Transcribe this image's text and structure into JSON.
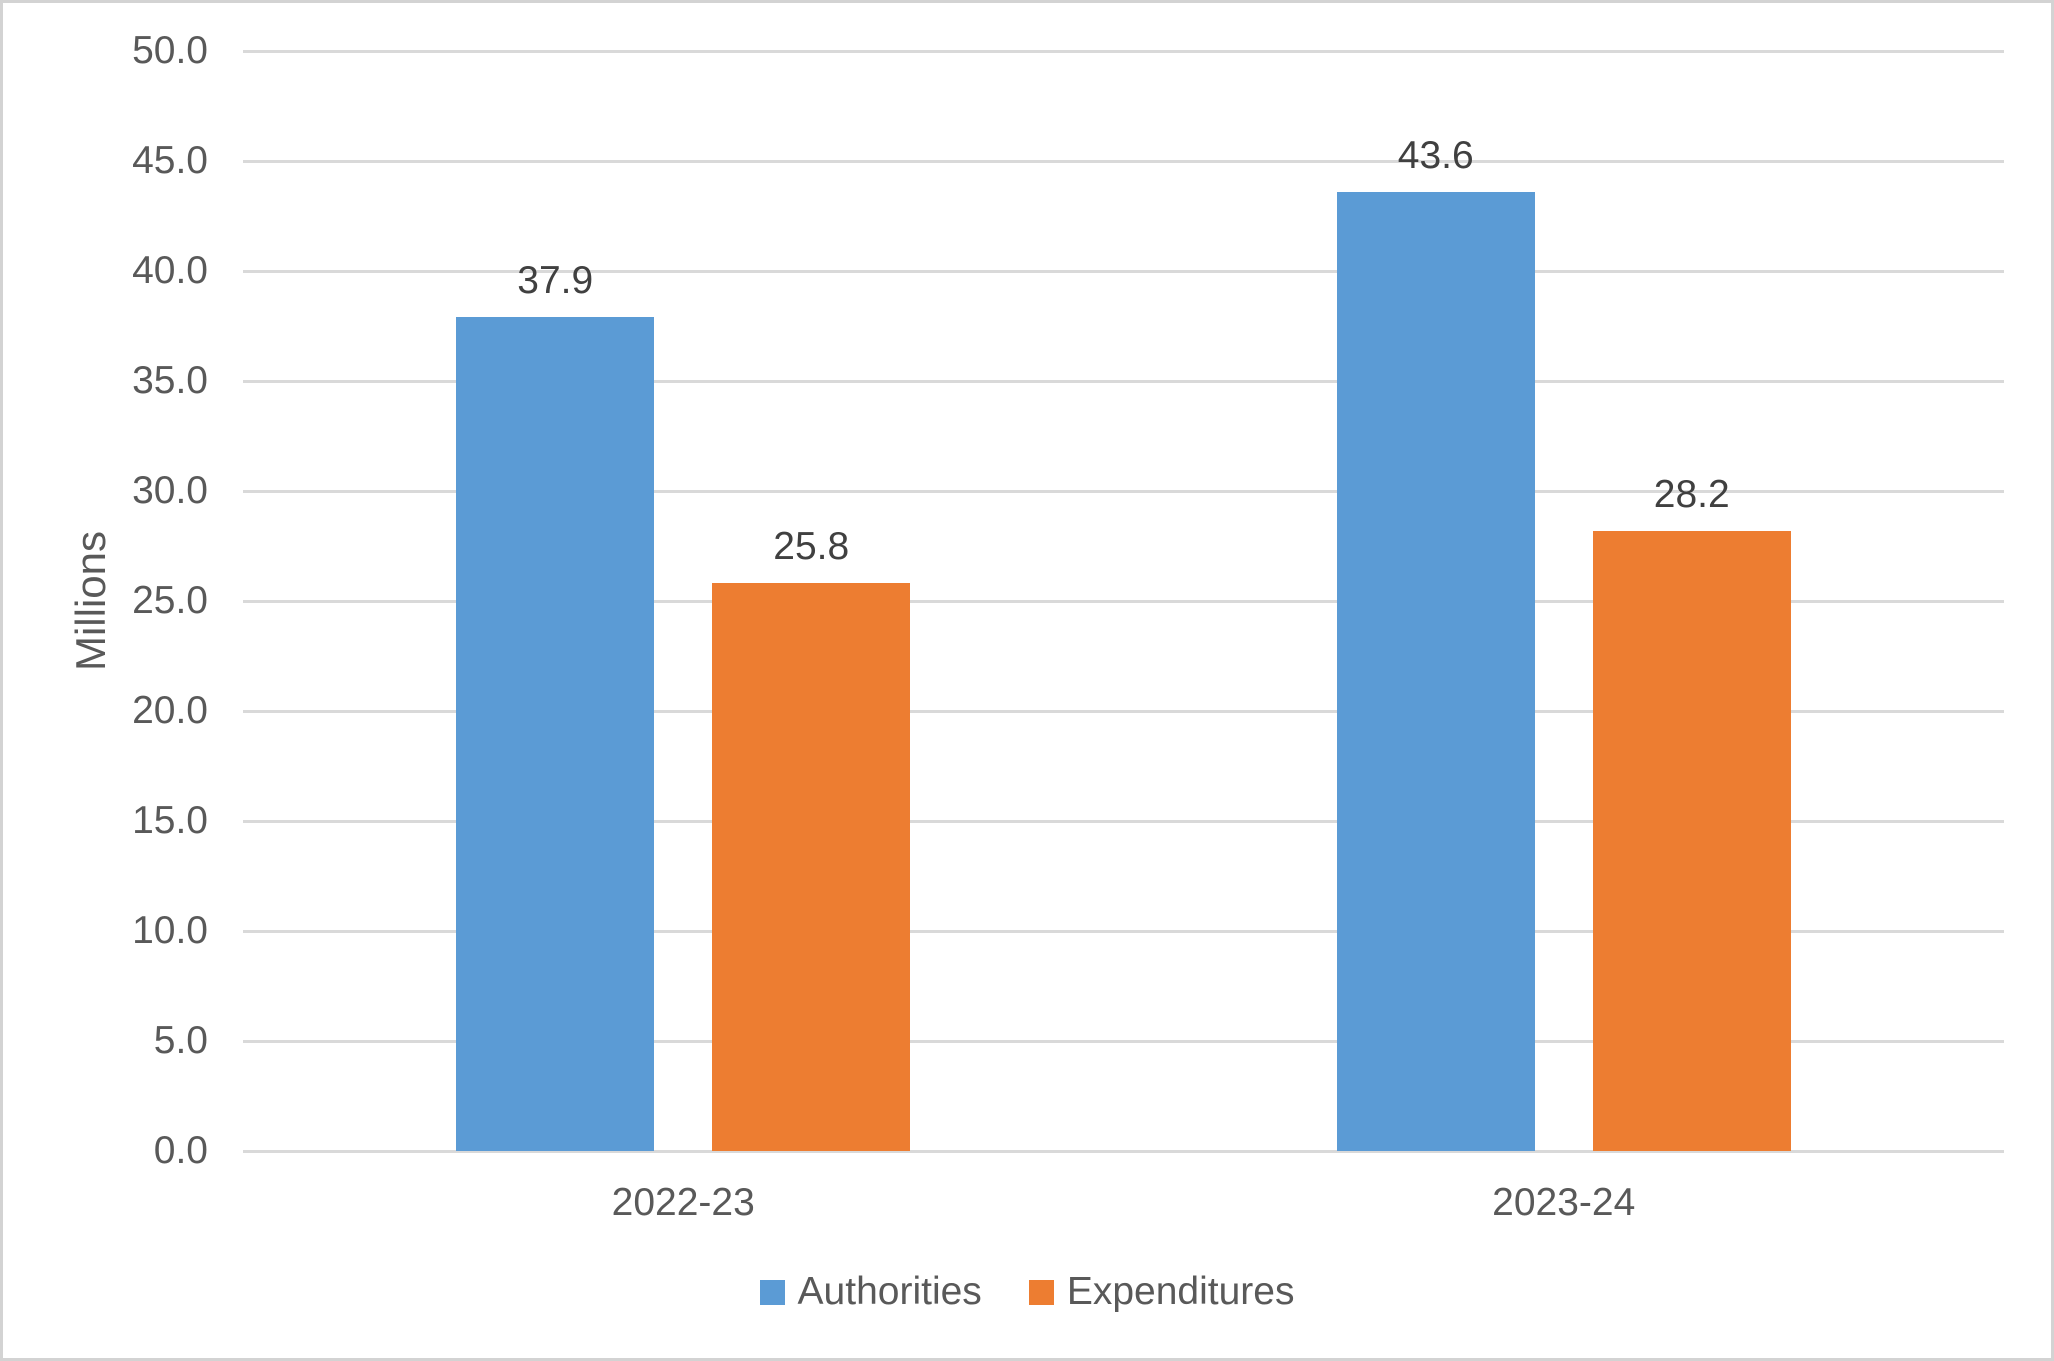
{
  "chart_data": {
    "type": "bar",
    "title": "",
    "ylabel": "Millions",
    "xlabel": "",
    "categories": [
      "2022-23",
      "2023-24"
    ],
    "series": [
      {
        "name": "Authorities",
        "color": "#5B9BD5",
        "values": [
          37.9,
          43.6
        ]
      },
      {
        "name": "Expenditures",
        "color": "#ED7D31",
        "values": [
          25.8,
          28.2
        ]
      }
    ],
    "data_labels": [
      [
        "37.9",
        "43.6"
      ],
      [
        "25.8",
        "28.2"
      ]
    ],
    "ylim": [
      0,
      50
    ],
    "ytick_step": 5,
    "ytick_labels": [
      "0.0",
      "5.0",
      "10.0",
      "15.0",
      "20.0",
      "25.0",
      "30.0",
      "35.0",
      "40.0",
      "45.0",
      "50.0"
    ],
    "grid": true,
    "legend_position": "bottom",
    "colors": {
      "gridline": "#D9D9D9",
      "axis_line": "#D9D9D9",
      "tick_text": "#595959",
      "data_label_text": "#404040",
      "frame_border": "#D3D3D3",
      "background": "#FFFFFF"
    }
  }
}
